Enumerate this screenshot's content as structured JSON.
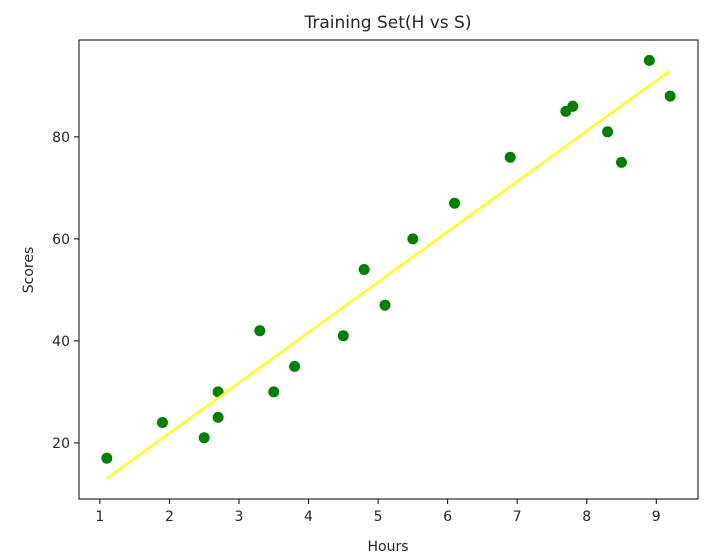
{
  "chart_data": {
    "type": "scatter",
    "title": "Training Set(H vs S)",
    "xlabel": "Hours",
    "ylabel": "Scores",
    "xlim": [
      0.7,
      9.6
    ],
    "ylim": [
      9,
      99
    ],
    "xticks": [
      1,
      2,
      3,
      4,
      5,
      6,
      7,
      8,
      9
    ],
    "yticks": [
      20,
      40,
      60,
      80
    ],
    "grid": false,
    "legend": "none",
    "series": [
      {
        "type": "scatter",
        "color": "#008000",
        "points": [
          {
            "x": 1.1,
            "y": 17
          },
          {
            "x": 1.9,
            "y": 24
          },
          {
            "x": 2.5,
            "y": 21
          },
          {
            "x": 2.7,
            "y": 25
          },
          {
            "x": 2.7,
            "y": 30
          },
          {
            "x": 3.3,
            "y": 42
          },
          {
            "x": 3.5,
            "y": 30
          },
          {
            "x": 3.8,
            "y": 35
          },
          {
            "x": 4.5,
            "y": 41
          },
          {
            "x": 4.8,
            "y": 54
          },
          {
            "x": 5.1,
            "y": 47
          },
          {
            "x": 5.5,
            "y": 60
          },
          {
            "x": 6.1,
            "y": 67
          },
          {
            "x": 6.9,
            "y": 76
          },
          {
            "x": 7.7,
            "y": 85
          },
          {
            "x": 7.8,
            "y": 86
          },
          {
            "x": 8.3,
            "y": 81
          },
          {
            "x": 8.5,
            "y": 75
          },
          {
            "x": 8.9,
            "y": 95
          },
          {
            "x": 9.2,
            "y": 88
          }
        ]
      },
      {
        "type": "line",
        "color": "#ffff00",
        "points": [
          {
            "x": 1.1,
            "y": 13
          },
          {
            "x": 9.2,
            "y": 93
          }
        ]
      }
    ]
  }
}
